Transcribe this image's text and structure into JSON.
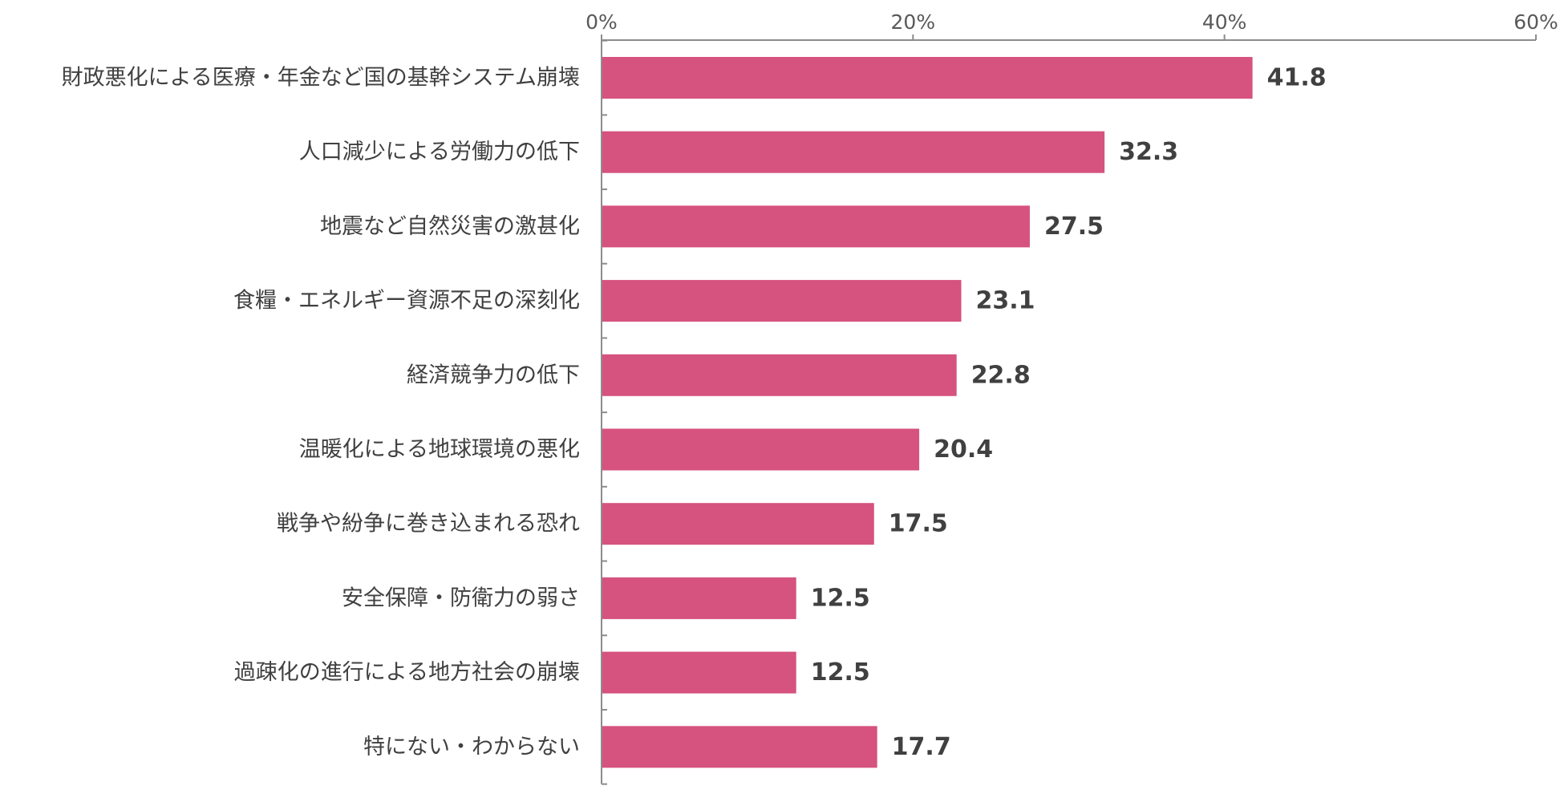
{
  "chart_data": {
    "type": "bar",
    "orientation": "horizontal",
    "categories": [
      "財政悪化による医療・年金など国の基幹システム崩壊",
      "人口減少による労働力の低下",
      "地震など自然災害の激甚化",
      "食糧・エネルギー資源不足の深刻化",
      "経済競争力の低下",
      "温暖化による地球環境の悪化",
      "戦争や紛争に巻き込まれる恐れ",
      "安全保障・防衛力の弱さ",
      "過疎化の進行による地方社会の崩壊",
      "特にない・わからない"
    ],
    "values": [
      41.8,
      32.3,
      27.5,
      23.1,
      22.8,
      20.4,
      17.5,
      12.5,
      12.5,
      17.7
    ],
    "value_labels": [
      "41.8",
      "32.3",
      "27.5",
      "23.1",
      "22.8",
      "20.4",
      "17.5",
      "12.5",
      "12.5",
      "17.7"
    ],
    "xlim": [
      0,
      60
    ],
    "x_ticks": [
      0,
      20,
      40,
      60
    ],
    "x_tick_labels": [
      "0%",
      "20%",
      "40%",
      "60%"
    ],
    "x_axis_position": "top",
    "grid": false,
    "legend": "none",
    "bar_color": "#d6527f",
    "title": "",
    "xlabel": "",
    "ylabel": ""
  }
}
